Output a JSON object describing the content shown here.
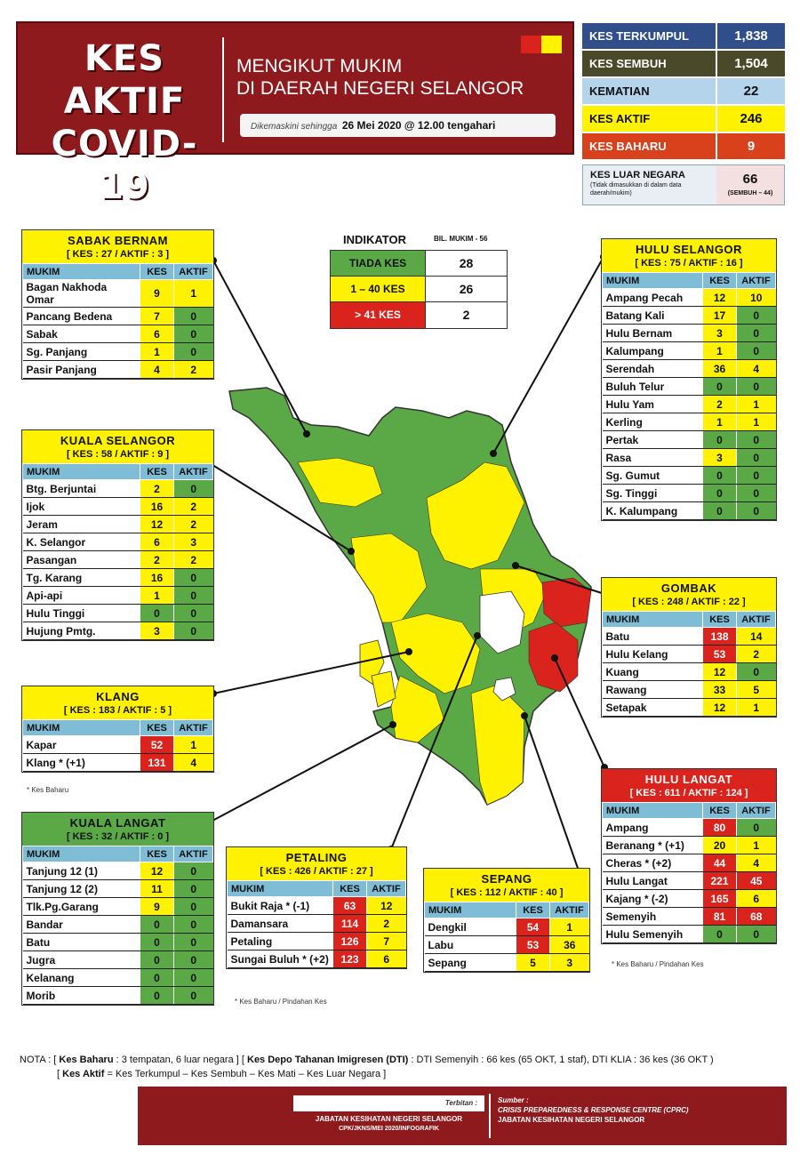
{
  "header": {
    "title_line1": "KES AKTIF",
    "title_line2": "COVID-19",
    "subtitle_line1": "MENGIKUT MUKIM",
    "subtitle_line2": "DI DAERAH NEGERI SELANGOR",
    "updated_prefix": "Dikemaskini sehingga",
    "updated_value": "26 Mei 2020 @ 12.00 tengahari"
  },
  "summary": [
    {
      "label": "KES TERKUMPUL",
      "value": "1,838",
      "bg": "#2f4e8a",
      "valbg": "#2f4e8a",
      "fg": "#ffffff"
    },
    {
      "label": "KES SEMBUH",
      "value": "1,504",
      "bg": "#4a4a2a",
      "valbg": "#4a4a2a",
      "fg": "#ffffff"
    },
    {
      "label": "KEMATIAN",
      "value": "22",
      "bg": "#b3d4ea",
      "valbg": "#b3d4ea",
      "fg": "#111111"
    },
    {
      "label": "KES AKTIF",
      "value": "246",
      "bg": "#fff200",
      "valbg": "#fff200",
      "fg": "#111111"
    },
    {
      "label": "KES BAHARU",
      "value": "9",
      "bg": "#d9401c",
      "valbg": "#d9401c",
      "fg": "#ffffff"
    }
  ],
  "outer": {
    "label": "KES LUAR NEGARA",
    "note": "(Tidak dimasukkan di dalam data daerah/mukim)",
    "value": "66",
    "sub": "(SEMBUH – 44)"
  },
  "indicator": {
    "title": "INDIKATOR",
    "mukim_count": "BIL. MUKIM - 56",
    "rows": [
      {
        "label": "TIADA KES",
        "value": "28",
        "cls": "g"
      },
      {
        "label": "1 – 40 KES",
        "value": "26",
        "cls": "y"
      },
      {
        "label": "> 41 KES",
        "value": "2",
        "cls": "r"
      }
    ]
  },
  "columns": {
    "mukim": "MUKIM",
    "kes": "KES",
    "aktif": "AKTIF"
  },
  "districts": {
    "sabak_bernam": {
      "name": "SABAK BERNAM",
      "stats": "[ KES : 27 / AKTIF : 3 ]",
      "head": "hy",
      "rows": [
        [
          "Bagan Nakhoda Omar",
          "9",
          "1",
          "y",
          "y"
        ],
        [
          "Pancang Bedena",
          "7",
          "0",
          "y",
          "g"
        ],
        [
          "Sabak",
          "6",
          "0",
          "y",
          "g"
        ],
        [
          "Sg. Panjang",
          "1",
          "0",
          "y",
          "g"
        ],
        [
          "Pasir Panjang",
          "4",
          "2",
          "y",
          "y"
        ]
      ]
    },
    "kuala_selangor": {
      "name": "KUALA SELANGOR",
      "stats": "[ KES : 58 / AKTIF : 9 ]",
      "head": "hy",
      "rows": [
        [
          "Btg. Berjuntai",
          "2",
          "0",
          "y",
          "g"
        ],
        [
          "Ijok",
          "16",
          "2",
          "y",
          "y"
        ],
        [
          "Jeram",
          "12",
          "2",
          "y",
          "y"
        ],
        [
          "K. Selangor",
          "6",
          "3",
          "y",
          "y"
        ],
        [
          "Pasangan",
          "2",
          "2",
          "y",
          "y"
        ],
        [
          "Tg. Karang",
          "16",
          "0",
          "y",
          "g"
        ],
        [
          "Api-api",
          "1",
          "0",
          "y",
          "g"
        ],
        [
          "Hulu Tinggi",
          "0",
          "0",
          "g",
          "g"
        ],
        [
          "Hujung Pmtg.",
          "3",
          "0",
          "y",
          "g"
        ]
      ]
    },
    "klang": {
      "name": "KLANG",
      "stats": "[ KES : 183 / AKTIF : 5 ]",
      "head": "hy",
      "rows": [
        [
          "Kapar",
          "52",
          "1",
          "r",
          "y"
        ],
        [
          "Klang * (+1)",
          "131",
          "4",
          "r",
          "y"
        ]
      ]
    },
    "kuala_langat": {
      "name": "KUALA LANGAT",
      "stats": "[ KES : 32 / AKTIF : 0 ]",
      "head": "hg",
      "rows": [
        [
          "Tanjung 12 (1)",
          "12",
          "0",
          "y",
          "g"
        ],
        [
          "Tanjung 12 (2)",
          "11",
          "0",
          "y",
          "g"
        ],
        [
          "Tlk.Pg.Garang",
          "9",
          "0",
          "y",
          "g"
        ],
        [
          "Bandar",
          "0",
          "0",
          "g",
          "g"
        ],
        [
          "Batu",
          "0",
          "0",
          "g",
          "g"
        ],
        [
          "Jugra",
          "0",
          "0",
          "g",
          "g"
        ],
        [
          "Kelanang",
          "0",
          "0",
          "g",
          "g"
        ],
        [
          "Morib",
          "0",
          "0",
          "g",
          "g"
        ]
      ]
    },
    "hulu_selangor": {
      "name": "HULU SELANGOR",
      "stats": "[ KES : 75 / AKTIF : 16 ]",
      "head": "hy",
      "rows": [
        [
          "Ampang Pecah",
          "12",
          "10",
          "y",
          "y"
        ],
        [
          "Batang Kali",
          "17",
          "0",
          "y",
          "g"
        ],
        [
          "Hulu Bernam",
          "3",
          "0",
          "y",
          "g"
        ],
        [
          "Kalumpang",
          "1",
          "0",
          "y",
          "g"
        ],
        [
          "Serendah",
          "36",
          "4",
          "y",
          "y"
        ],
        [
          "Buluh Telur",
          "0",
          "0",
          "g",
          "g"
        ],
        [
          "Hulu Yam",
          "2",
          "1",
          "y",
          "y"
        ],
        [
          "Kerling",
          "1",
          "1",
          "y",
          "y"
        ],
        [
          "Pertak",
          "0",
          "0",
          "g",
          "g"
        ],
        [
          "Rasa",
          "3",
          "0",
          "y",
          "g"
        ],
        [
          "Sg. Gumut",
          "0",
          "0",
          "g",
          "g"
        ],
        [
          "Sg. Tinggi",
          "0",
          "0",
          "g",
          "g"
        ],
        [
          "K. Kalumpang",
          "0",
          "0",
          "g",
          "g"
        ]
      ]
    },
    "gombak": {
      "name": "GOMBAK",
      "stats": "[ KES : 248 / AKTIF : 22 ]",
      "head": "hy",
      "rows": [
        [
          "Batu",
          "138",
          "14",
          "r",
          "y"
        ],
        [
          "Hulu Kelang",
          "53",
          "2",
          "r",
          "y"
        ],
        [
          "Kuang",
          "12",
          "0",
          "y",
          "g"
        ],
        [
          "Rawang",
          "33",
          "5",
          "y",
          "y"
        ],
        [
          "Setapak",
          "12",
          "1",
          "y",
          "y"
        ]
      ]
    },
    "hulu_langat": {
      "name": "HULU LANGAT",
      "stats": "[ KES : 611 / AKTIF : 124 ]",
      "head": "hr",
      "rows": [
        [
          "Ampang",
          "80",
          "0",
          "r",
          "g"
        ],
        [
          "Beranang * (+1)",
          "20",
          "1",
          "y",
          "y"
        ],
        [
          "Cheras * (+2)",
          "44",
          "4",
          "r",
          "y"
        ],
        [
          "Hulu Langat",
          "221",
          "45",
          "r",
          "r"
        ],
        [
          "Kajang * (-2)",
          "165",
          "6",
          "r",
          "y"
        ],
        [
          "Semenyih",
          "81",
          "68",
          "r",
          "r"
        ],
        [
          "Hulu Semenyih",
          "0",
          "0",
          "g",
          "g"
        ]
      ]
    },
    "petaling": {
      "name": "PETALING",
      "stats": "[ KES : 426 / AKTIF : 27 ]",
      "head": "hy",
      "rows": [
        [
          "Bukit Raja * (-1)",
          "63",
          "12",
          "r",
          "y"
        ],
        [
          "Damansara",
          "114",
          "2",
          "r",
          "y"
        ],
        [
          "Petaling",
          "126",
          "7",
          "r",
          "y"
        ],
        [
          "Sungai Buluh * (+2)",
          "123",
          "6",
          "r",
          "y"
        ]
      ]
    },
    "sepang": {
      "name": "SEPANG",
      "stats": "[ KES : 112 / AKTIF : 40 ]",
      "head": "hy",
      "rows": [
        [
          "Dengkil",
          "54",
          "1",
          "r",
          "y"
        ],
        [
          "Labu",
          "53",
          "36",
          "r",
          "y"
        ],
        [
          "Sepang",
          "5",
          "3",
          "y",
          "y"
        ]
      ]
    }
  },
  "notes": {
    "klang": "* Kes Baharu",
    "petaling": "* Kes Baharu / Pindahan Kes",
    "hulu_langat": "* Kes Baharu / Pindahan Kes"
  },
  "nota": {
    "label": "NOTA :",
    "kb_label": "Kes Baharu",
    "kb_text": ": 3 tempatan, 6 luar negara ]",
    "dti_label": "Kes Depo Tahanan Imigresen (DTI)",
    "dti_text": ": DTI Semenyih : 66 kes (65 OKT, 1 staf), DTI KLIA : 36 kes (36 OKT )",
    "ka_label": "Kes Aktif",
    "ka_text": "= Kes Terkumpul – Kes Sembuh – Kes Mati – Kes Luar Negara ]"
  },
  "footer": {
    "terbitan": "Terbitan :",
    "publisher": "JABATAN KESIHATAN NEGERI SELANGOR",
    "ref": "CPK/JKNS/MEI 2020/INFOGRAFIK",
    "sumber": "Sumber :",
    "source1": "CRISIS PREPAREDNESS & RESPONSE CENTRE (CPRC)",
    "source2": "JABATAN KESIHATAN NEGERI SELANGOR"
  },
  "colors": {
    "green": "#5ba846",
    "yellow": "#fff200",
    "red": "#d9231c",
    "maroon": "#8f1a1e",
    "header_blue": "#7fbcd6"
  }
}
